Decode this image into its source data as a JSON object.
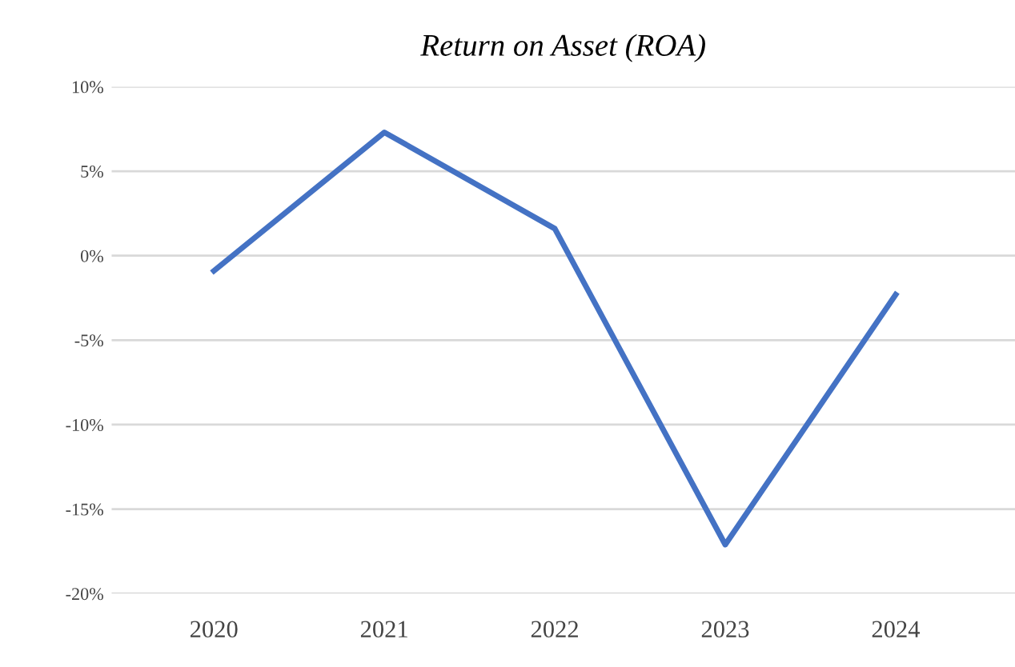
{
  "chart_data": {
    "type": "line",
    "title": "Return on Asset (ROA)",
    "categories": [
      "2020",
      "2021",
      "2022",
      "2023",
      "2024"
    ],
    "series": [
      {
        "color": "#4472c4",
        "values": [
          -0.9,
          7.3,
          1.6,
          -17.1,
          -2.3
        ]
      }
    ],
    "ylim": [
      -20,
      10
    ],
    "yticks": [
      {
        "value": -20,
        "label": "-20%"
      },
      {
        "value": -15,
        "label": "-15%"
      },
      {
        "value": -10,
        "label": "-10%"
      },
      {
        "value": -5,
        "label": "-5%"
      },
      {
        "value": 0,
        "label": "0%"
      },
      {
        "value": 5,
        "label": "5%"
      },
      {
        "value": 10,
        "label": "10%"
      }
    ],
    "grid": "y",
    "marker": "none",
    "line_style": "solid"
  }
}
